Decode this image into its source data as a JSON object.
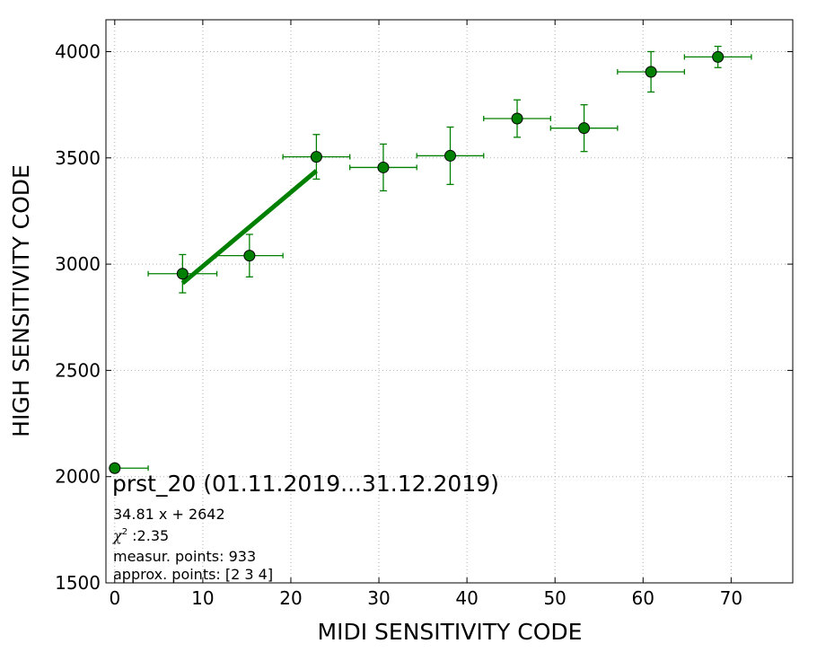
{
  "chart_data": {
    "type": "scatter",
    "xlabel": "MIDI SENSITIVITY CODE",
    "ylabel": "HIGH SENSITIVITY CODE",
    "xlim": [
      -1,
      77
    ],
    "ylim": [
      1500,
      4150
    ],
    "xticks": [
      0,
      10,
      20,
      30,
      40,
      50,
      60,
      70
    ],
    "yticks": [
      1500,
      2000,
      2500,
      3000,
      3500,
      4000
    ],
    "grid": true,
    "marker_color": "#008000",
    "fit_color": "#008000",
    "points": [
      {
        "x": 0,
        "y": 2040,
        "xerr_low": 0,
        "xerr_high": 3.8,
        "yerr": 0
      },
      {
        "x": 7.7,
        "y": 2955,
        "xerr_low": 3.9,
        "xerr_high": 3.9,
        "yerr": 90
      },
      {
        "x": 15.3,
        "y": 3040,
        "xerr_low": 3.8,
        "xerr_high": 3.8,
        "yerr": 100
      },
      {
        "x": 22.9,
        "y": 3505,
        "xerr_low": 3.8,
        "xerr_high": 3.8,
        "yerr": 105
      },
      {
        "x": 30.5,
        "y": 3455,
        "xerr_low": 3.8,
        "xerr_high": 3.8,
        "yerr": 110
      },
      {
        "x": 38.1,
        "y": 3510,
        "xerr_low": 3.8,
        "xerr_high": 3.8,
        "yerr": 135
      },
      {
        "x": 45.7,
        "y": 3685,
        "xerr_low": 3.8,
        "xerr_high": 3.8,
        "yerr": 88
      },
      {
        "x": 53.3,
        "y": 3640,
        "xerr_low": 3.8,
        "xerr_high": 3.8,
        "yerr": 110
      },
      {
        "x": 60.9,
        "y": 3905,
        "xerr_low": 3.8,
        "xerr_high": 3.8,
        "yerr": 95
      },
      {
        "x": 68.5,
        "y": 3975,
        "xerr_low": 3.8,
        "xerr_high": 3.8,
        "yerr": 50
      }
    ],
    "fit": {
      "slope": 34.81,
      "intercept": 2642,
      "x_range": [
        7.7,
        22.9
      ]
    },
    "annotations": {
      "title": "prst_20 (01.11.2019...31.12.2019)",
      "equation": "34.81 x + 2642",
      "chi_symbol": "χ",
      "chi_exp": "2",
      "chi_value": " :2.35",
      "measur_points": "measur. points: 933",
      "approx_points": "approx. points: [2 3 4]"
    }
  }
}
